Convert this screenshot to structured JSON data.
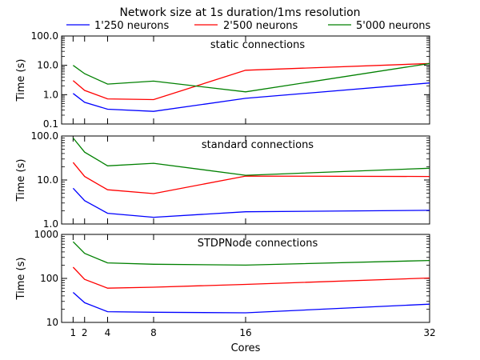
{
  "chart_data": {
    "type": "line",
    "title": "Network size at 1s duration/1ms resolution",
    "xlabel": "Cores",
    "x": [
      1,
      2,
      4,
      8,
      16,
      32
    ],
    "x_tick_labels": [
      "1",
      "2",
      "4",
      "8",
      "16",
      "32"
    ],
    "series_names": [
      "1'250 neurons",
      "2'500 neurons",
      "5'000 neurons"
    ],
    "series_colors": [
      "#0000ff",
      "#ff0000",
      "#008000"
    ],
    "legend_placement": "top",
    "grid": false,
    "panels": [
      {
        "annotation": "static connections",
        "ylabel": "Time (s)",
        "yscale": "log",
        "ylim": [
          0.1,
          100
        ],
        "y_ticks": [
          0.1,
          1,
          10,
          100
        ],
        "y_tick_labels": [
          "0.1",
          "1.0",
          "10.0",
          "100.0"
        ],
        "series": [
          {
            "name": "1'250 neurons",
            "values": [
              1.1,
              0.55,
              0.32,
              0.27,
              0.75,
              2.5
            ]
          },
          {
            "name": "2'500 neurons",
            "values": [
              3.0,
              1.4,
              0.72,
              0.68,
              6.8,
              11.5
            ]
          },
          {
            "name": "5'000 neurons",
            "values": [
              10.0,
              5.2,
              2.3,
              2.9,
              1.25,
              11.5
            ]
          }
        ]
      },
      {
        "annotation": "standard connections",
        "ylabel": "Time (s)",
        "yscale": "log",
        "ylim": [
          1,
          100
        ],
        "y_ticks": [
          1,
          10,
          100
        ],
        "y_tick_labels": [
          "1.0",
          "10.0",
          "100.0"
        ],
        "series": [
          {
            "name": "1'250 neurons",
            "values": [
              6.5,
              3.4,
              1.75,
              1.42,
              1.9,
              2.05
            ]
          },
          {
            "name": "2'500 neurons",
            "values": [
              25,
              12,
              6.0,
              4.9,
              12.3,
              12.0
            ]
          },
          {
            "name": "5'000 neurons",
            "values": [
              90,
              43,
              21,
              24,
              12.8,
              18.5
            ]
          }
        ]
      },
      {
        "annotation": "STDPNode connections",
        "ylabel": "Time (s)",
        "yscale": "log",
        "ylim": [
          10,
          1000
        ],
        "y_ticks": [
          10,
          100,
          1000
        ],
        "y_tick_labels": [
          "10",
          "100",
          "1000"
        ],
        "series": [
          {
            "name": "1'250 neurons",
            "values": [
              48,
              28,
              17.5,
              17,
              16.5,
              26
            ]
          },
          {
            "name": "2'500 neurons",
            "values": [
              180,
              95,
              60,
              63,
              73,
              102
            ]
          },
          {
            "name": "5'000 neurons",
            "values": [
              680,
              370,
              225,
              210,
              200,
              255
            ]
          }
        ]
      }
    ]
  }
}
